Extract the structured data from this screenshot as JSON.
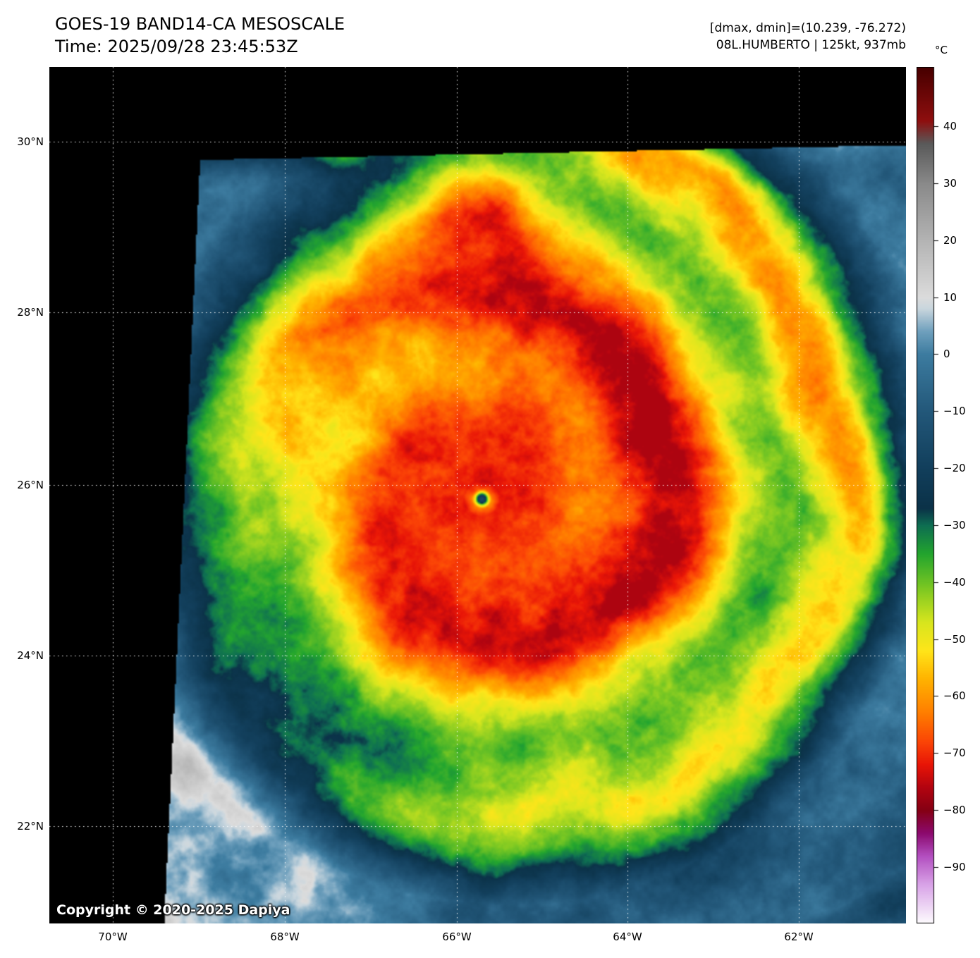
{
  "header": {
    "title": "GOES-19 BAND14-CA MESOSCALE",
    "time": "Time: 2025/09/28 23:45:53Z",
    "dmax_dmin": "[dmax, dmin]=(10.239, -76.272)",
    "storm_info": "08L.HUMBERTO | 125kt, 937mb"
  },
  "colorbar": {
    "unit": "°C",
    "ticks": [
      40,
      30,
      20,
      10,
      0,
      -10,
      -20,
      -30,
      -40,
      -50,
      -60,
      -70,
      -80,
      -90
    ],
    "stops": [
      [
        50,
        "#4a0000"
      ],
      [
        41,
        "#8f0f0f"
      ],
      [
        37,
        "#5a5a5a"
      ],
      [
        30,
        "#8a8a8a"
      ],
      [
        20,
        "#b4b4b4"
      ],
      [
        10,
        "#dcdcdc"
      ],
      [
        8,
        "#c9d6de"
      ],
      [
        4,
        "#6fa0bd"
      ],
      [
        0,
        "#3d7ca0"
      ],
      [
        -10,
        "#23587a"
      ],
      [
        -20,
        "#123f5c"
      ],
      [
        -27,
        "#0b3248"
      ],
      [
        -30,
        "#0e6e52"
      ],
      [
        -35,
        "#23a52e"
      ],
      [
        -41,
        "#7cc822"
      ],
      [
        -47,
        "#d8e61e"
      ],
      [
        -52,
        "#ffe51a"
      ],
      [
        -57,
        "#ffb300"
      ],
      [
        -63,
        "#ff7d00"
      ],
      [
        -68,
        "#fb4506"
      ],
      [
        -72,
        "#e81507"
      ],
      [
        -76,
        "#b30410"
      ],
      [
        -80,
        "#850014"
      ],
      [
        -84,
        "#8c0a6e"
      ],
      [
        -88,
        "#b34fc0"
      ],
      [
        -93,
        "#d9a3e8"
      ],
      [
        -100,
        "#ffffff"
      ]
    ]
  },
  "axes": {
    "lat_labels": [
      "30°N",
      "28°N",
      "26°N",
      "24°N",
      "22°N"
    ],
    "lon_labels": [
      "70°W",
      "68°W",
      "66°W",
      "64°W",
      "62°W"
    ]
  },
  "map": {
    "copyright": "Copyright © 2020-2025 Dapiya"
  }
}
